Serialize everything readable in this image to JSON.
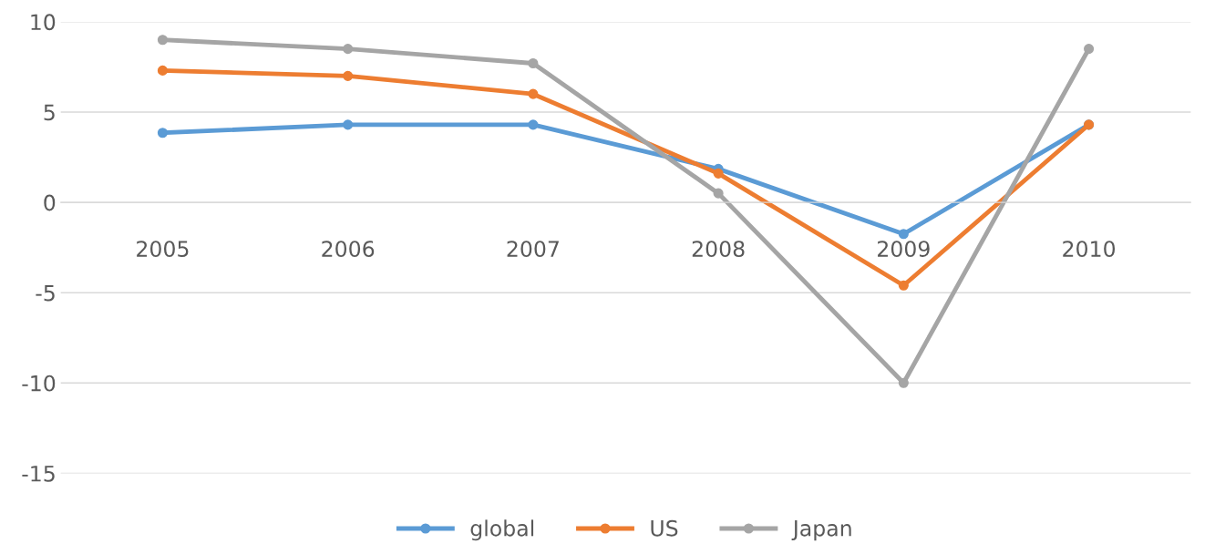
{
  "chart_data": {
    "type": "line",
    "categories": [
      "2005",
      "2006",
      "2007",
      "2008",
      "2009",
      "2010"
    ],
    "series": [
      {
        "name": "global",
        "color": "#5b9bd5",
        "values": [
          3.85,
          4.3,
          4.3,
          1.85,
          -1.75,
          4.3
        ]
      },
      {
        "name": "US",
        "color": "#ed7d31",
        "values": [
          7.3,
          7.0,
          6.0,
          1.6,
          -4.6,
          4.3
        ]
      },
      {
        "name": "Japan",
        "color": "#a5a5a5",
        "values": [
          9.0,
          8.5,
          7.7,
          0.5,
          -10.0,
          8.5
        ]
      }
    ],
    "ylim": [
      -15,
      10
    ],
    "yticks": [
      -15,
      -10,
      -5,
      0,
      5,
      10
    ],
    "grid": "y",
    "legend": "bottom",
    "marker": "circle",
    "line_style": "solid"
  }
}
